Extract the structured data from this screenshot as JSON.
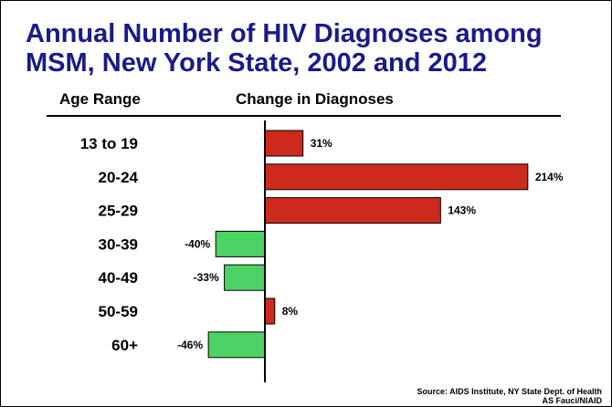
{
  "chart_data": {
    "type": "bar",
    "orientation": "horizontal",
    "title": "Annual Number of HIV Diagnoses among MSM, New York State, 2002 and 2012",
    "category_header": "Age Range",
    "value_header": "Change in Diagnoses",
    "categories": [
      "13 to 19",
      "20-24",
      "25-29",
      "30-39",
      "40-49",
      "50-59",
      "60+"
    ],
    "values": [
      31,
      214,
      143,
      -40,
      -33,
      8,
      -46
    ],
    "value_labels": [
      "31%",
      "214%",
      "143%",
      "-40%",
      "-33%",
      "8%",
      "-46%"
    ],
    "unit": "%",
    "colors": {
      "positive": "#cc2a1d",
      "negative": "#4cd364",
      "axis": "#000000"
    },
    "grid": false
  },
  "footer": {
    "source": "Source: AIDS Institute, NY State Dept. of Health",
    "credit": "AS Fauci/NIAID"
  }
}
